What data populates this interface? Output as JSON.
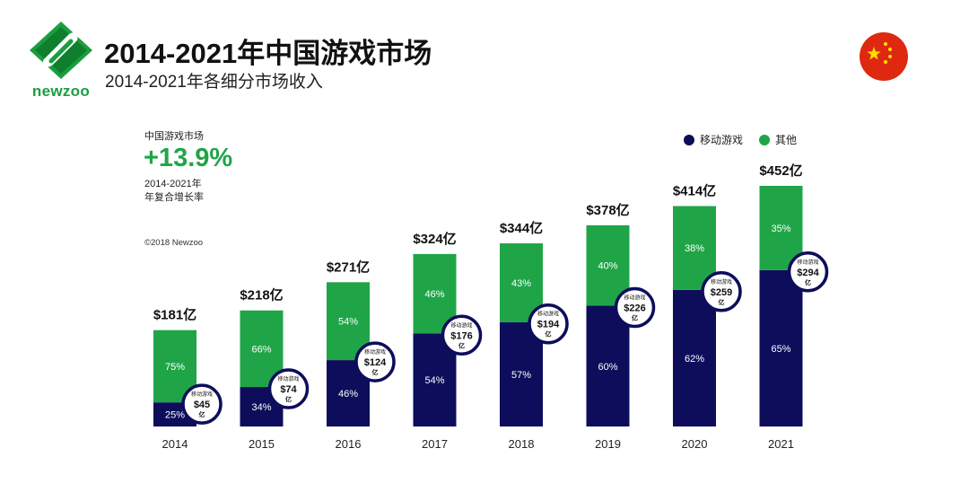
{
  "header": {
    "logo_text": "newzoo",
    "title": "2014-2021年中国游戏市场",
    "subtitle": "2014-2021年各细分市场收入"
  },
  "summary": {
    "label": "中国游戏市场",
    "cagr": "+13.9%",
    "years": "2014-2021年",
    "desc": "年复合增长率"
  },
  "copyright": "©2018 Newzoo",
  "legend": {
    "mobile": "移动游戏",
    "other": "其他"
  },
  "colors": {
    "mobile": "#0d0d5c",
    "other": "#1fa548",
    "brand": "#1a9e3f",
    "flag": "#de2910",
    "star": "#ffde00"
  },
  "icons": {
    "logo": "newzoo-logo-icon",
    "flag": "china-flag-icon"
  },
  "chart_data": {
    "type": "bar",
    "stacked": true,
    "categories": [
      "2014",
      "2015",
      "2016",
      "2017",
      "2018",
      "2019",
      "2020",
      "2021"
    ],
    "totals": [
      181,
      218,
      271,
      324,
      344,
      378,
      414,
      452
    ],
    "total_labels": [
      "$181亿",
      "$218亿",
      "$271亿",
      "$324亿",
      "$344亿",
      "$378亿",
      "$414亿",
      "$452亿"
    ],
    "series": [
      {
        "name": "移动游戏",
        "percents": [
          25,
          34,
          46,
          54,
          57,
          60,
          62,
          65
        ],
        "percent_labels": [
          "25%",
          "34%",
          "46%",
          "54%",
          "57%",
          "60%",
          "62%",
          "65%"
        ],
        "callout_title": "移动游戏",
        "callout_values": [
          "$45",
          "$74",
          "$124",
          "$176",
          "$194",
          "$226",
          "$259",
          "$294"
        ],
        "callout_unit": "亿"
      },
      {
        "name": "其他",
        "percents": [
          75,
          66,
          54,
          46,
          43,
          40,
          38,
          35
        ],
        "percent_labels": [
          "75%",
          "66%",
          "54%",
          "46%",
          "43%",
          "40%",
          "38%",
          "35%"
        ]
      }
    ],
    "ylim": [
      0,
      452
    ],
    "grid": false,
    "legend_position": "top-right"
  }
}
